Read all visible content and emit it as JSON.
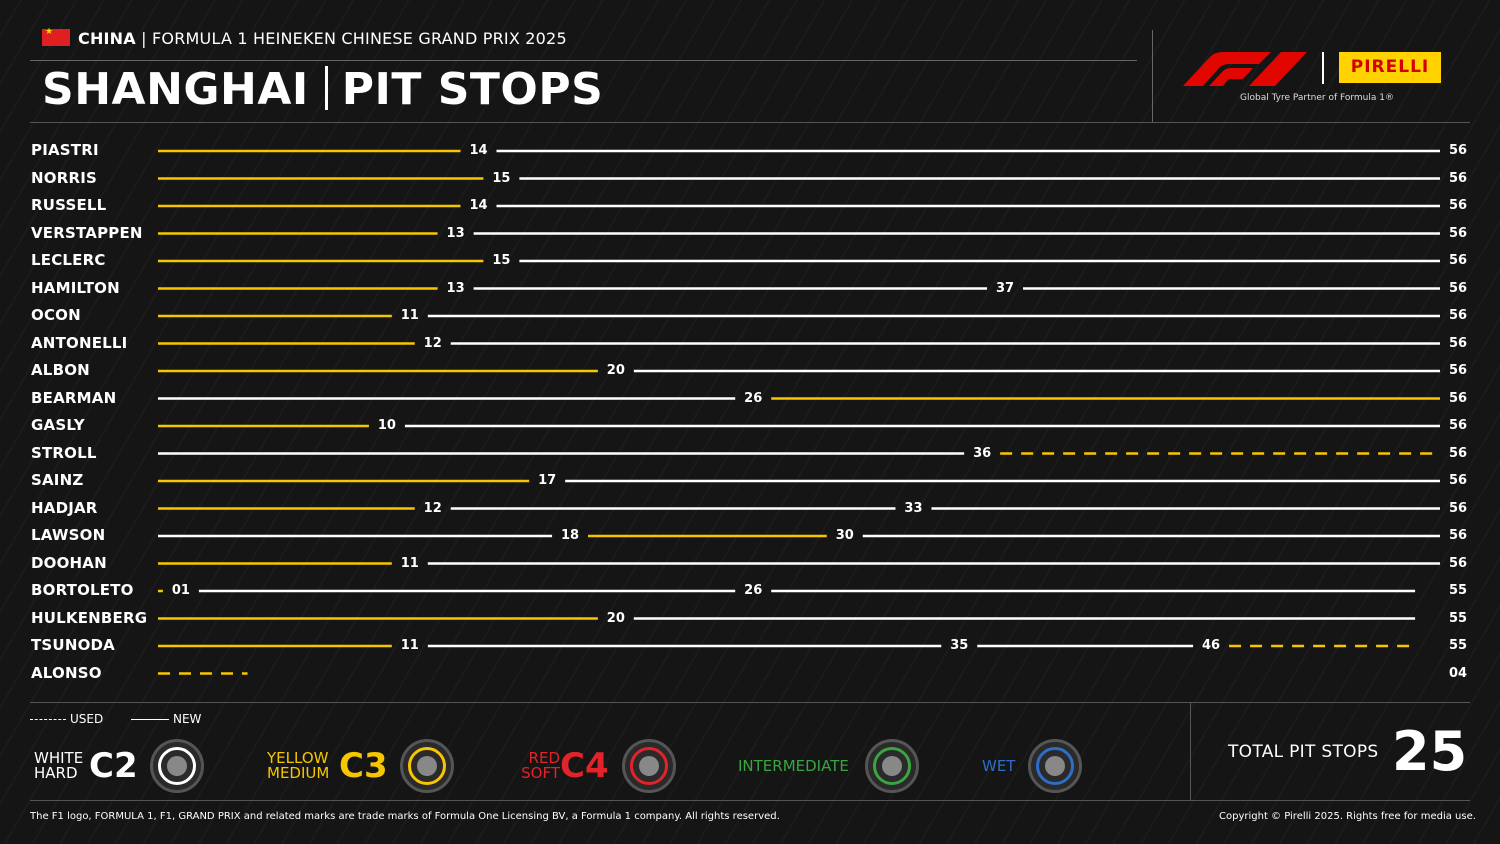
{
  "header": {
    "country": "CHINA",
    "event": "FORMULA 1 HEINEKEN CHINESE GRAND PRIX 2025",
    "title_left": "SHANGHAI",
    "title_right": "PIT STOPS",
    "pirelli_logo": "PIRELLI",
    "partner_text": "Global Tyre Partner of Formula 1®"
  },
  "colors": {
    "hard": "#ffffff",
    "medium": "#f6c600",
    "soft": "#e2232a",
    "intermediate": "#3aa540",
    "wet": "#2d6ec9",
    "f1_red": "#e10600",
    "pirelli_yellow": "#ffd200"
  },
  "chart_data": {
    "type": "table",
    "total_laps": 56,
    "rows": [
      {
        "driver": "PIASTRI",
        "stints": [
          {
            "compound": "medium",
            "used": false,
            "end": 14
          },
          {
            "compound": "hard",
            "used": false,
            "end": 56
          }
        ],
        "labels": [
          "14",
          "56"
        ]
      },
      {
        "driver": "NORRIS",
        "stints": [
          {
            "compound": "medium",
            "used": false,
            "end": 15
          },
          {
            "compound": "hard",
            "used": false,
            "end": 56
          }
        ],
        "labels": [
          "15",
          "56"
        ]
      },
      {
        "driver": "RUSSELL",
        "stints": [
          {
            "compound": "medium",
            "used": false,
            "end": 14
          },
          {
            "compound": "hard",
            "used": false,
            "end": 56
          }
        ],
        "labels": [
          "14",
          "56"
        ]
      },
      {
        "driver": "VERSTAPPEN",
        "stints": [
          {
            "compound": "medium",
            "used": false,
            "end": 13
          },
          {
            "compound": "hard",
            "used": false,
            "end": 56
          }
        ],
        "labels": [
          "13",
          "56"
        ]
      },
      {
        "driver": "LECLERC",
        "stints": [
          {
            "compound": "medium",
            "used": false,
            "end": 15
          },
          {
            "compound": "hard",
            "used": false,
            "end": 56
          }
        ],
        "labels": [
          "15",
          "56"
        ]
      },
      {
        "driver": "HAMILTON",
        "stints": [
          {
            "compound": "medium",
            "used": false,
            "end": 13
          },
          {
            "compound": "hard",
            "used": false,
            "end": 37
          },
          {
            "compound": "hard",
            "used": false,
            "end": 56
          }
        ],
        "labels": [
          "13",
          "37",
          "56"
        ]
      },
      {
        "driver": "OCON",
        "stints": [
          {
            "compound": "medium",
            "used": false,
            "end": 11
          },
          {
            "compound": "hard",
            "used": false,
            "end": 56
          }
        ],
        "labels": [
          "11",
          "56"
        ]
      },
      {
        "driver": "ANTONELLI",
        "stints": [
          {
            "compound": "medium",
            "used": false,
            "end": 12
          },
          {
            "compound": "hard",
            "used": false,
            "end": 56
          }
        ],
        "labels": [
          "12",
          "56"
        ]
      },
      {
        "driver": "ALBON",
        "stints": [
          {
            "compound": "medium",
            "used": false,
            "end": 20
          },
          {
            "compound": "hard",
            "used": false,
            "end": 56
          }
        ],
        "labels": [
          "20",
          "56"
        ]
      },
      {
        "driver": "BEARMAN",
        "stints": [
          {
            "compound": "hard",
            "used": false,
            "end": 26
          },
          {
            "compound": "medium",
            "used": false,
            "end": 56
          }
        ],
        "labels": [
          "26",
          "56"
        ]
      },
      {
        "driver": "GASLY",
        "stints": [
          {
            "compound": "medium",
            "used": false,
            "end": 10
          },
          {
            "compound": "hard",
            "used": false,
            "end": 56
          }
        ],
        "labels": [
          "10",
          "56"
        ]
      },
      {
        "driver": "STROLL",
        "stints": [
          {
            "compound": "hard",
            "used": false,
            "end": 36
          },
          {
            "compound": "medium",
            "used": true,
            "end": 56
          }
        ],
        "labels": [
          "36",
          "56"
        ]
      },
      {
        "driver": "SAINZ",
        "stints": [
          {
            "compound": "medium",
            "used": false,
            "end": 17
          },
          {
            "compound": "hard",
            "used": false,
            "end": 56
          }
        ],
        "labels": [
          "17",
          "56"
        ]
      },
      {
        "driver": "HADJAR",
        "stints": [
          {
            "compound": "medium",
            "used": false,
            "end": 12
          },
          {
            "compound": "hard",
            "used": false,
            "end": 33
          },
          {
            "compound": "hard",
            "used": false,
            "end": 56
          }
        ],
        "labels": [
          "12",
          "33",
          "56"
        ]
      },
      {
        "driver": "LAWSON",
        "stints": [
          {
            "compound": "hard",
            "used": false,
            "end": 18
          },
          {
            "compound": "medium",
            "used": false,
            "end": 30
          },
          {
            "compound": "hard",
            "used": false,
            "end": 56
          }
        ],
        "labels": [
          "18",
          "30",
          "56"
        ]
      },
      {
        "driver": "DOOHAN",
        "stints": [
          {
            "compound": "medium",
            "used": false,
            "end": 11
          },
          {
            "compound": "hard",
            "used": false,
            "end": 56
          }
        ],
        "labels": [
          "11",
          "56"
        ]
      },
      {
        "driver": "BORTOLETO",
        "stints": [
          {
            "compound": "medium",
            "used": false,
            "end": 1
          },
          {
            "compound": "hard",
            "used": false,
            "end": 26
          },
          {
            "compound": "hard",
            "used": false,
            "end": 55
          }
        ],
        "labels": [
          "01",
          "26",
          "55"
        ]
      },
      {
        "driver": "HULKENBERG",
        "stints": [
          {
            "compound": "medium",
            "used": false,
            "end": 20
          },
          {
            "compound": "hard",
            "used": false,
            "end": 55
          }
        ],
        "labels": [
          "20",
          "55"
        ]
      },
      {
        "driver": "TSUNODA",
        "stints": [
          {
            "compound": "medium",
            "used": false,
            "end": 11
          },
          {
            "compound": "hard",
            "used": false,
            "end": 35
          },
          {
            "compound": "hard",
            "used": false,
            "end": 46
          },
          {
            "compound": "medium",
            "used": true,
            "end": 55
          }
        ],
        "labels": [
          "11",
          "35",
          "46",
          "55"
        ]
      },
      {
        "driver": "ALONSO",
        "stints": [
          {
            "compound": "medium",
            "used": true,
            "end": 4
          }
        ],
        "labels": [
          "04"
        ]
      }
    ]
  },
  "legend": {
    "used": "USED",
    "new": "NEW",
    "tyres": [
      {
        "color_name": "WHITE",
        "type_name": "HARD",
        "code": "C2",
        "compound": "hard"
      },
      {
        "color_name": "YELLOW",
        "type_name": "MEDIUM",
        "code": "C3",
        "compound": "medium"
      },
      {
        "color_name": "RED",
        "type_name": "SOFT",
        "code": "C4",
        "compound": "soft"
      },
      {
        "label": "INTERMEDIATE",
        "compound": "intermediate"
      },
      {
        "label": "WET",
        "compound": "wet"
      }
    ]
  },
  "total": {
    "label": "TOTAL PIT STOPS",
    "value": "25"
  },
  "footer": {
    "left": "The F1 logo, FORMULA 1, F1, GRAND PRIX and related marks are trade marks of Formula One Licensing BV, a Formula 1 company. All rights reserved.",
    "right": "Copyright © Pirelli 2025. Rights free for media use."
  }
}
